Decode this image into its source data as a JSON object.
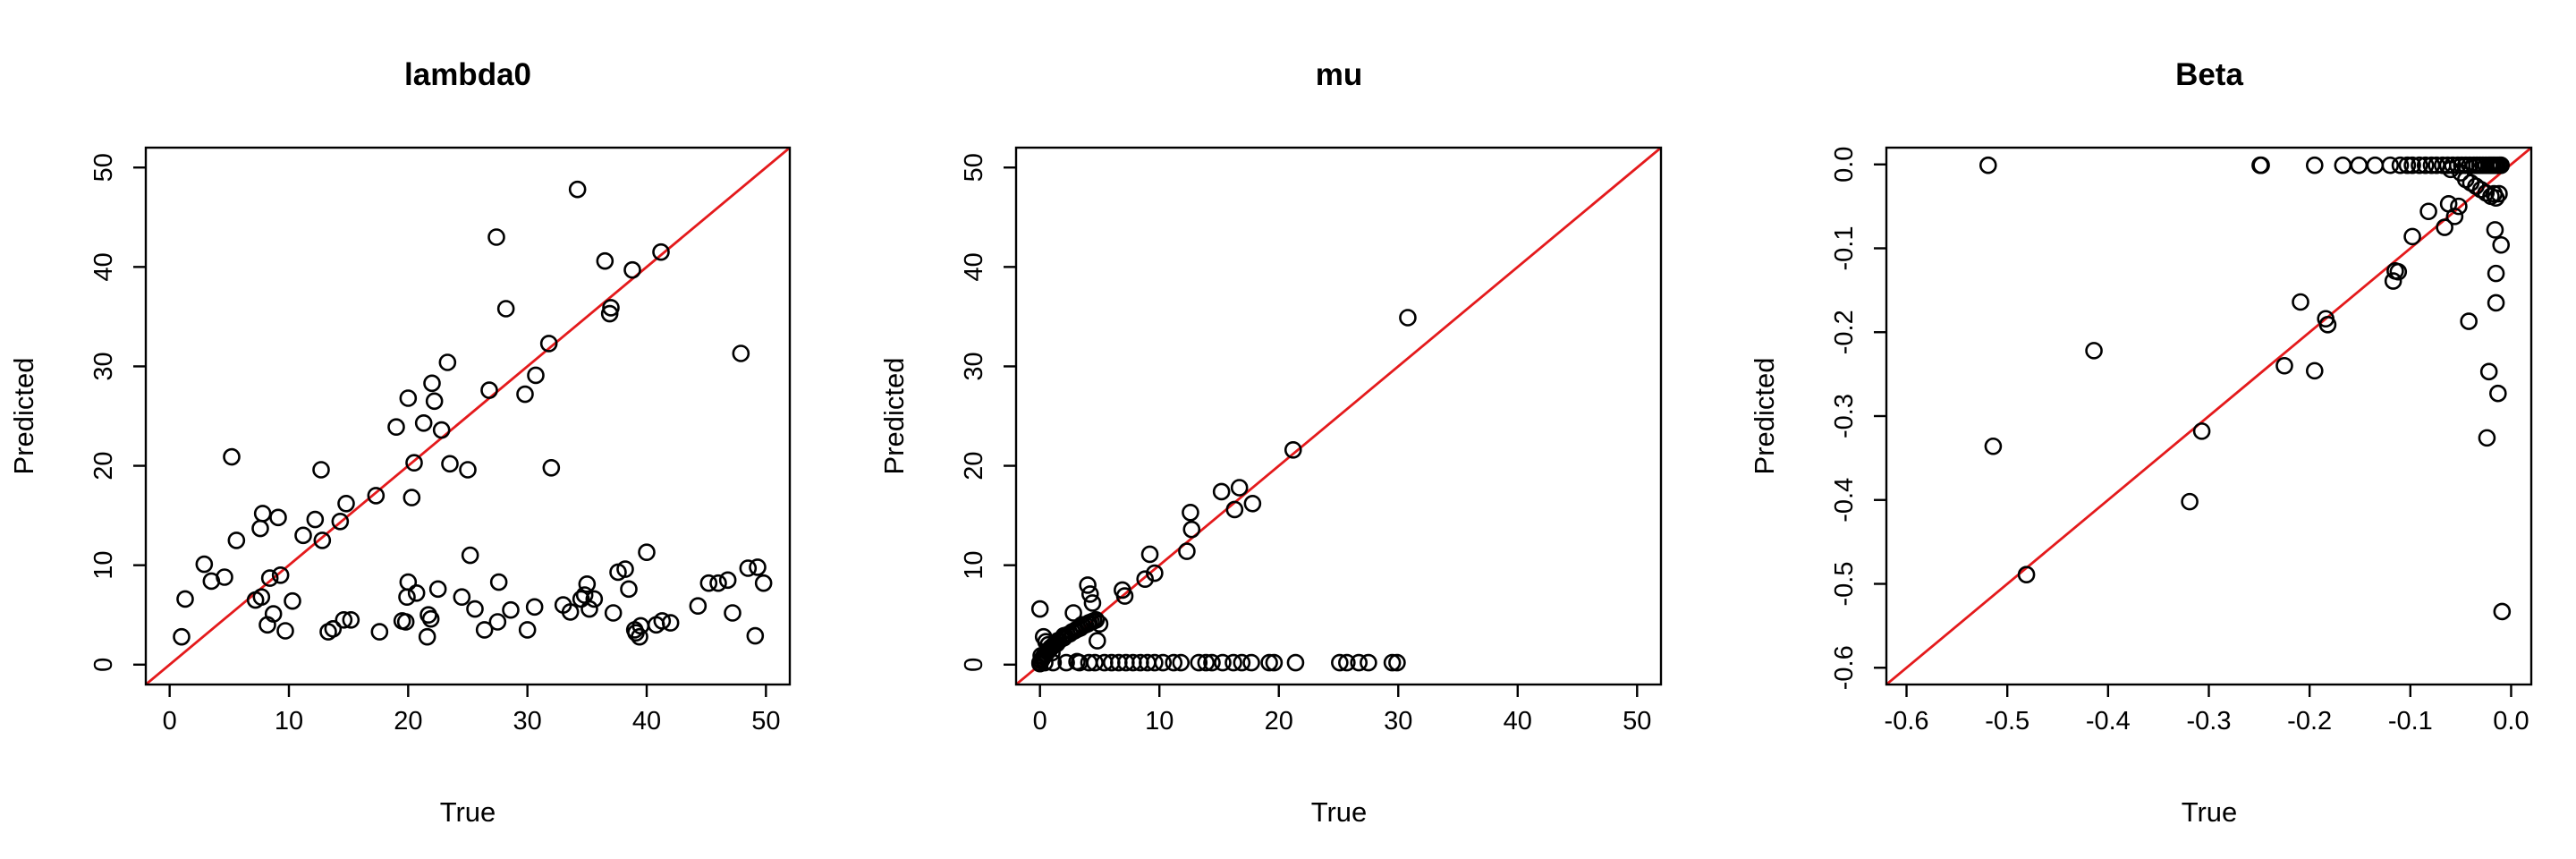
{
  "chart_data": [
    {
      "type": "scatter",
      "title": "lambda0",
      "xlabel": "True",
      "ylabel": "Predicted",
      "xlim": [
        -2,
        52
      ],
      "ylim": [
        -2,
        52
      ],
      "xticks": [
        0,
        10,
        20,
        30,
        40,
        50
      ],
      "yticks": [
        0,
        10,
        20,
        30,
        40,
        50
      ],
      "xtick_labels": [
        "0",
        "10",
        "20",
        "30",
        "40",
        "50"
      ],
      "ytick_labels": [
        "0",
        "10",
        "20",
        "30",
        "40",
        "50"
      ],
      "reference_line": "y = x",
      "reference_color": "#e41a1c",
      "grid": false,
      "x": [
        1.0,
        1.3,
        2.9,
        3.5,
        4.6,
        5.2,
        5.6,
        7.2,
        7.6,
        7.8,
        7.7,
        8.2,
        8.4,
        8.7,
        9.1,
        9.3,
        9.7,
        10.3,
        11.2,
        12.2,
        12.7,
        12.8,
        13.3,
        13.7,
        14.3,
        14.6,
        14.8,
        15.2,
        17.3,
        17.6,
        19.0,
        19.5,
        19.8,
        19.9,
        20.0,
        20.0,
        20.3,
        20.5,
        20.7,
        21.3,
        21.6,
        21.7,
        21.9,
        22.0,
        22.2,
        22.5,
        22.8,
        23.3,
        23.5,
        24.5,
        25.0,
        25.2,
        25.6,
        26.4,
        26.8,
        27.4,
        27.5,
        27.6,
        28.2,
        28.6,
        29.8,
        30.0,
        30.6,
        30.7,
        31.8,
        32.0,
        33.0,
        33.6,
        34.2,
        34.5,
        34.8,
        35.0,
        35.2,
        35.6,
        36.5,
        36.9,
        37.0,
        37.2,
        37.6,
        38.2,
        38.5,
        38.8,
        39.0,
        39.1,
        39.4,
        39.5,
        40.0,
        40.8,
        41.2,
        41.3,
        42.0,
        44.3,
        45.2,
        46.0,
        46.8,
        47.2,
        47.9,
        48.5,
        49.1,
        49.3,
        49.8
      ],
      "y": [
        2.8,
        6.6,
        10.1,
        8.4,
        8.8,
        20.9,
        12.5,
        6.5,
        13.7,
        15.2,
        6.8,
        4.0,
        8.7,
        5.1,
        14.8,
        9.0,
        3.4,
        6.4,
        13.0,
        14.6,
        19.6,
        12.5,
        3.3,
        3.6,
        14.4,
        4.5,
        16.2,
        4.5,
        17.0,
        3.3,
        23.9,
        4.4,
        4.3,
        6.8,
        8.3,
        26.8,
        16.8,
        20.3,
        7.2,
        24.3,
        2.8,
        5.0,
        4.6,
        28.3,
        26.5,
        7.6,
        23.6,
        30.4,
        20.2,
        6.8,
        19.6,
        11.0,
        5.6,
        3.5,
        27.6,
        43.0,
        4.3,
        8.3,
        35.8,
        5.5,
        27.2,
        3.5,
        5.8,
        29.1,
        32.3,
        19.8,
        6.0,
        5.3,
        47.8,
        6.6,
        7.0,
        8.1,
        5.6,
        6.6,
        40.6,
        35.3,
        35.9,
        5.2,
        9.3,
        9.6,
        7.6,
        39.7,
        3.5,
        3.2,
        2.8,
        3.9,
        11.3,
        4.0,
        41.5,
        4.4,
        4.2,
        5.9,
        8.2,
        8.2,
        8.5,
        5.2,
        31.3,
        9.7,
        2.9,
        9.8,
        8.2
      ]
    },
    {
      "type": "scatter",
      "title": "mu",
      "xlabel": "True",
      "ylabel": "Predicted",
      "xlim": [
        -2,
        52
      ],
      "ylim": [
        -2,
        52
      ],
      "xticks": [
        0,
        10,
        20,
        30,
        40,
        50
      ],
      "yticks": [
        0,
        10,
        20,
        30,
        40,
        50
      ],
      "xtick_labels": [
        "0",
        "10",
        "20",
        "30",
        "40",
        "50"
      ],
      "ytick_labels": [
        "0",
        "10",
        "20",
        "30",
        "40",
        "50"
      ],
      "reference_line": "y = x",
      "reference_color": "#e41a1c",
      "grid": false,
      "x": [
        0.0,
        0.1,
        0.2,
        0.3,
        0.4,
        0.5,
        0.6,
        0.7,
        0.8,
        0.9,
        1.0,
        1.1,
        1.2,
        1.4,
        1.5,
        1.6,
        1.8,
        2.0,
        2.1,
        2.3,
        2.5,
        2.7,
        2.9,
        3.0,
        3.2,
        3.4,
        3.6,
        3.8,
        4.0,
        4.1,
        4.3,
        4.5,
        4.7,
        0.0,
        0.3,
        0.7,
        1.0,
        1.5,
        2.0,
        2.8,
        3.5,
        4.0,
        4.2,
        4.4,
        4.8,
        5.0,
        0.0,
        0.4,
        1.1,
        2.2,
        3.3,
        4.1,
        4.6,
        5.4,
        6.0,
        6.6,
        7.2,
        7.8,
        8.4,
        9.0,
        9.6,
        10.3,
        11.2,
        11.8,
        13.3,
        13.9,
        14.4,
        15.3,
        16.2,
        16.9,
        17.7,
        19.2,
        19.6,
        21.4,
        25.1,
        25.7,
        26.7,
        27.5,
        29.5,
        29.9,
        6.9,
        7.1,
        8.8,
        9.2,
        9.6,
        12.3,
        12.6,
        12.7,
        15.2,
        16.3,
        16.7,
        17.8,
        21.2,
        30.8,
        0.1,
        0.5,
        3.1
      ],
      "y": [
        0.1,
        0.4,
        0.6,
        0.8,
        1.0,
        1.1,
        1.3,
        1.4,
        1.5,
        1.7,
        1.8,
        1.9,
        2.0,
        2.1,
        2.3,
        2.4,
        2.6,
        2.7,
        2.9,
        3.0,
        3.1,
        3.3,
        3.4,
        3.5,
        3.6,
        3.7,
        3.9,
        4.0,
        4.1,
        4.2,
        4.3,
        4.4,
        4.5,
        5.6,
        2.8,
        2.0,
        1.2,
        2.4,
        2.9,
        5.2,
        4.0,
        8.0,
        7.1,
        6.2,
        2.4,
        4.1,
        0.2,
        0.2,
        0.2,
        0.2,
        0.2,
        0.2,
        0.2,
        0.2,
        0.2,
        0.2,
        0.2,
        0.2,
        0.2,
        0.2,
        0.2,
        0.2,
        0.2,
        0.2,
        0.2,
        0.2,
        0.2,
        0.2,
        0.2,
        0.2,
        0.2,
        0.2,
        0.2,
        0.2,
        0.2,
        0.2,
        0.2,
        0.2,
        0.2,
        0.2,
        7.5,
        6.9,
        8.6,
        11.1,
        9.2,
        11.4,
        15.3,
        13.6,
        17.4,
        15.6,
        17.8,
        16.2,
        21.6,
        34.9,
        0.9,
        2.3,
        0.3
      ]
    },
    {
      "type": "scatter",
      "title": "Beta",
      "xlabel": "True",
      "ylabel": "Predicted",
      "xlim": [
        -0.62,
        0.02
      ],
      "ylim": [
        -0.62,
        0.02
      ],
      "xticks": [
        -0.6,
        -0.5,
        -0.4,
        -0.3,
        -0.2,
        -0.1,
        0.0
      ],
      "yticks": [
        -0.6,
        -0.5,
        -0.4,
        -0.3,
        -0.2,
        -0.1,
        0.0
      ],
      "xtick_labels": [
        "-0.6",
        "-0.5",
        "-0.4",
        "-0.3",
        "-0.2",
        "-0.1",
        "0.0"
      ],
      "ytick_labels": [
        "-0.6",
        "-0.5",
        "-0.4",
        "-0.3",
        "-0.2",
        "-0.1",
        "0.0"
      ],
      "reference_line": "y = x",
      "reference_color": "#e41a1c",
      "grid": false,
      "x": [
        -0.519,
        -0.249,
        -0.248,
        -0.195,
        -0.167,
        -0.151,
        -0.135,
        -0.12,
        -0.11,
        -0.103,
        -0.098,
        -0.091,
        -0.085,
        -0.079,
        -0.074,
        -0.068,
        -0.063,
        -0.058,
        -0.053,
        -0.049,
        -0.045,
        -0.041,
        -0.037,
        -0.034,
        -0.031,
        -0.028,
        -0.025,
        -0.022,
        -0.02,
        -0.018,
        -0.016,
        -0.014,
        -0.012,
        -0.011,
        -0.01,
        -0.06,
        -0.05,
        -0.045,
        -0.04,
        -0.035,
        -0.03,
        -0.025,
        -0.02,
        -0.015,
        -0.017,
        -0.082,
        -0.062,
        -0.056,
        -0.098,
        -0.115,
        -0.117,
        -0.016,
        -0.01,
        -0.015,
        -0.015,
        -0.022,
        -0.013,
        -0.024,
        -0.009,
        -0.012,
        -0.184,
        -0.182,
        -0.209,
        -0.225,
        -0.195,
        -0.042,
        -0.414,
        -0.514,
        -0.481,
        -0.307,
        -0.319,
        -0.112,
        -0.066,
        -0.052
      ],
      "y": [
        -0.001,
        -0.001,
        -0.001,
        -0.001,
        -0.001,
        -0.001,
        -0.001,
        -0.001,
        -0.001,
        -0.001,
        -0.001,
        -0.001,
        -0.001,
        -0.001,
        -0.001,
        -0.001,
        -0.001,
        -0.001,
        -0.001,
        -0.001,
        -0.001,
        -0.001,
        -0.001,
        -0.001,
        -0.001,
        -0.001,
        -0.001,
        -0.001,
        -0.001,
        -0.001,
        -0.001,
        -0.001,
        -0.001,
        -0.001,
        -0.001,
        -0.006,
        -0.01,
        -0.018,
        -0.022,
        -0.026,
        -0.03,
        -0.034,
        -0.038,
        -0.04,
        -0.035,
        -0.056,
        -0.047,
        -0.062,
        -0.086,
        -0.127,
        -0.139,
        -0.078,
        -0.096,
        -0.13,
        -0.165,
        -0.247,
        -0.273,
        -0.326,
        -0.533,
        -0.035,
        -0.184,
        -0.191,
        -0.164,
        -0.24,
        -0.246,
        -0.187,
        -0.222,
        -0.336,
        -0.489,
        -0.318,
        -0.402,
        -0.128,
        -0.075,
        -0.05
      ]
    }
  ]
}
